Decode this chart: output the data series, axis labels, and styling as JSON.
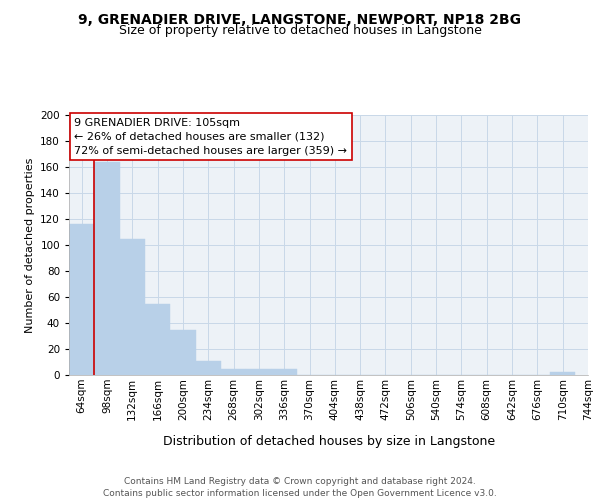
{
  "title": "9, GRENADIER DRIVE, LANGSTONE, NEWPORT, NP18 2BG",
  "subtitle": "Size of property relative to detached houses in Langstone",
  "bar_heights": [
    116,
    164,
    105,
    55,
    35,
    11,
    5,
    5,
    5,
    0,
    0,
    0,
    0,
    0,
    0,
    0,
    0,
    0,
    0,
    2
  ],
  "bin_labels": [
    "64sqm",
    "98sqm",
    "132sqm",
    "166sqm",
    "200sqm",
    "234sqm",
    "268sqm",
    "302sqm",
    "336sqm",
    "370sqm",
    "404sqm",
    "438sqm",
    "472sqm",
    "506sqm",
    "540sqm",
    "574sqm",
    "608sqm",
    "642sqm",
    "676sqm",
    "710sqm",
    "744sqm"
  ],
  "bar_color": "#b8d0e8",
  "vline_color": "#cc0000",
  "annotation_line1": "9 GRENADIER DRIVE: 105sqm",
  "annotation_line2": "← 26% of detached houses are smaller (132)",
  "annotation_line3": "72% of semi-detached houses are larger (359) →",
  "xlabel": "Distribution of detached houses by size in Langstone",
  "ylabel": "Number of detached properties",
  "ylim": [
    0,
    200
  ],
  "yticks": [
    0,
    20,
    40,
    60,
    80,
    100,
    120,
    140,
    160,
    180,
    200
  ],
  "grid_color": "#c8d8e8",
  "background_color": "#edf2f7",
  "footer_text": "Contains HM Land Registry data © Crown copyright and database right 2024.\nContains public sector information licensed under the Open Government Licence v3.0.",
  "title_fontsize": 10,
  "subtitle_fontsize": 9,
  "xlabel_fontsize": 9,
  "ylabel_fontsize": 8,
  "tick_fontsize": 7.5,
  "annotation_fontsize": 8,
  "footer_fontsize": 6.5
}
